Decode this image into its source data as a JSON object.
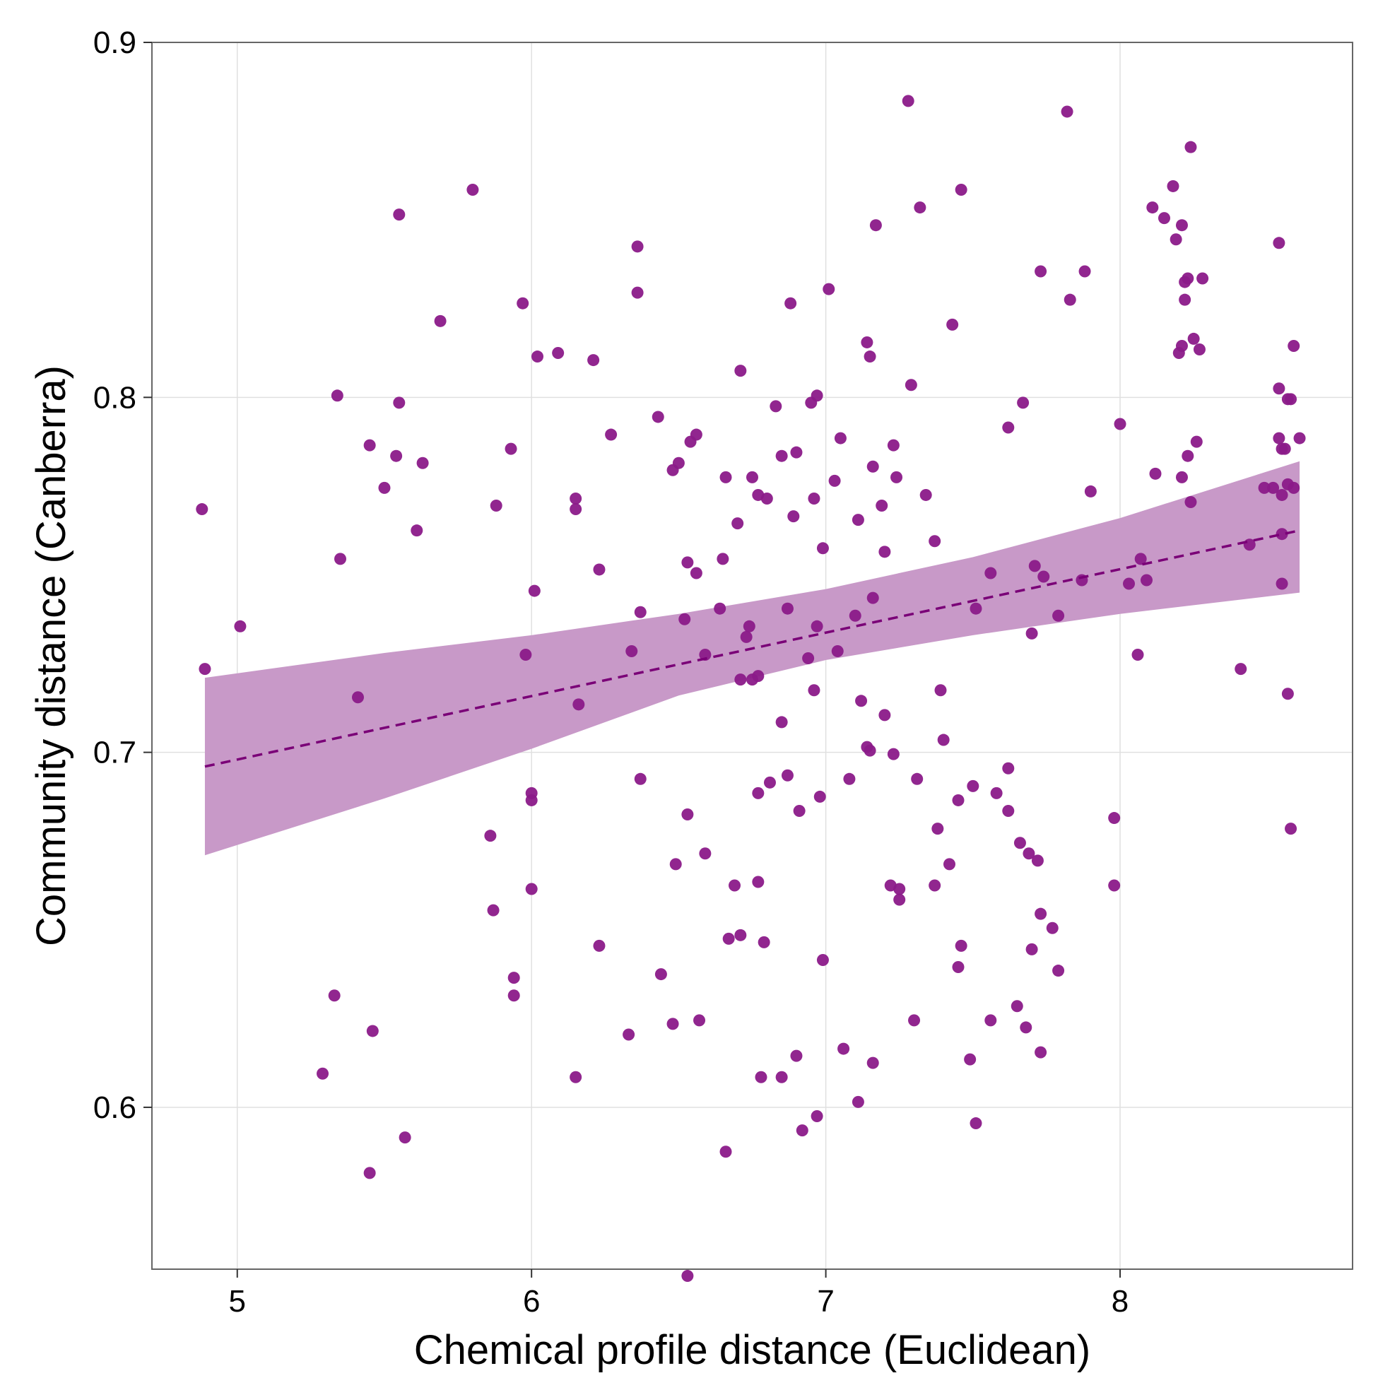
{
  "chart_data": {
    "type": "scatter",
    "title": "",
    "xlabel": "Chemical profile distance (Euclidean)",
    "ylabel": "Community distance (Canberra)",
    "xlim": [
      4.71,
      8.79
    ],
    "ylim": [
      0.5544,
      0.9
    ],
    "x_ticks": [
      5,
      6,
      7,
      8
    ],
    "x_tick_labels": [
      "5",
      "6",
      "7",
      "8"
    ],
    "y_ticks": [
      0.6,
      0.7,
      0.8,
      0.9
    ],
    "y_tick_labels": [
      "0.6",
      "0.7",
      "0.8",
      "0.9"
    ],
    "grid": true,
    "legend": "none",
    "colors": {
      "points": "#8b1a89",
      "band": "#c899c8",
      "trend": "#7a0077",
      "grid": "#e0e0e0",
      "frame": "#666666"
    },
    "trend_line": {
      "x": [
        4.89,
        8.61
      ],
      "y": [
        0.696,
        0.7625
      ],
      "style": "dashed"
    },
    "confidence_band": {
      "x": [
        4.89,
        5.5,
        6.0,
        6.5,
        7.0,
        7.5,
        8.0,
        8.61
      ],
      "lower": [
        0.671,
        0.687,
        0.701,
        0.716,
        0.726,
        0.733,
        0.739,
        0.745
      ],
      "upper": [
        0.721,
        0.728,
        0.733,
        0.739,
        0.746,
        0.755,
        0.766,
        0.782
      ]
    },
    "points": [
      [
        4.88,
        0.7685
      ],
      [
        4.89,
        0.7235
      ],
      [
        5.01,
        0.7355
      ],
      [
        5.29,
        0.6095
      ],
      [
        5.33,
        0.6315
      ],
      [
        5.34,
        0.8005
      ],
      [
        5.35,
        0.7545
      ],
      [
        5.41,
        0.7155
      ],
      [
        5.45,
        0.7865
      ],
      [
        5.45,
        0.5815
      ],
      [
        5.46,
        0.6215
      ],
      [
        5.54,
        0.7835
      ],
      [
        5.55,
        0.8515
      ],
      [
        5.55,
        0.7985
      ],
      [
        5.5,
        0.7745
      ],
      [
        5.57,
        0.5915
      ],
      [
        5.61,
        0.7625
      ],
      [
        5.63,
        0.7815
      ],
      [
        5.69,
        0.8215
      ],
      [
        5.8,
        0.8585
      ],
      [
        5.86,
        0.6765
      ],
      [
        5.87,
        0.6555
      ],
      [
        5.88,
        0.7695
      ],
      [
        5.93,
        0.7855
      ],
      [
        5.94,
        0.6365
      ],
      [
        5.94,
        0.6315
      ],
      [
        5.97,
        0.8265
      ],
      [
        5.98,
        0.7275
      ],
      [
        6.0,
        0.6885
      ],
      [
        6.0,
        0.6865
      ],
      [
        6.0,
        0.6615
      ],
      [
        6.01,
        0.7455
      ],
      [
        6.02,
        0.8115
      ],
      [
        6.09,
        0.8125
      ],
      [
        6.15,
        0.7715
      ],
      [
        6.15,
        0.7685
      ],
      [
        6.15,
        0.6085
      ],
      [
        6.16,
        0.7135
      ],
      [
        6.21,
        0.8105
      ],
      [
        6.23,
        0.7515
      ],
      [
        6.23,
        0.6455
      ],
      [
        6.27,
        0.7895
      ],
      [
        6.33,
        0.6205
      ],
      [
        6.34,
        0.7285
      ],
      [
        6.36,
        0.8425
      ],
      [
        6.36,
        0.8295
      ],
      [
        6.37,
        0.7395
      ],
      [
        6.37,
        0.6925
      ],
      [
        6.43,
        0.7945
      ],
      [
        6.44,
        0.6375
      ],
      [
        6.48,
        0.7795
      ],
      [
        6.48,
        0.6235
      ],
      [
        6.49,
        0.6685
      ],
      [
        6.5,
        0.7815
      ],
      [
        6.52,
        0.7375
      ],
      [
        6.53,
        0.6825
      ],
      [
        6.53,
        0.7535
      ],
      [
        6.53,
        0.5525
      ],
      [
        6.54,
        0.7875
      ],
      [
        6.56,
        0.7895
      ],
      [
        6.56,
        0.7505
      ],
      [
        6.57,
        0.6245
      ],
      [
        6.59,
        0.6715
      ],
      [
        6.59,
        0.7275
      ],
      [
        6.64,
        0.7405
      ],
      [
        6.65,
        0.7545
      ],
      [
        6.66,
        0.7775
      ],
      [
        6.66,
        0.5875
      ],
      [
        6.67,
        0.6475
      ],
      [
        6.69,
        0.6625
      ],
      [
        6.7,
        0.7645
      ],
      [
        6.71,
        0.8075
      ],
      [
        6.71,
        0.6485
      ],
      [
        6.71,
        0.7205
      ],
      [
        6.73,
        0.7325
      ],
      [
        6.74,
        0.7355
      ],
      [
        6.75,
        0.7775
      ],
      [
        6.75,
        0.7205
      ],
      [
        6.77,
        0.7215
      ],
      [
        6.77,
        0.7725
      ],
      [
        6.77,
        0.6885
      ],
      [
        6.77,
        0.6635
      ],
      [
        6.78,
        0.6085
      ],
      [
        6.79,
        0.6465
      ],
      [
        6.8,
        0.7715
      ],
      [
        6.81,
        0.6915
      ],
      [
        6.83,
        0.7975
      ],
      [
        6.85,
        0.7085
      ],
      [
        6.85,
        0.7835
      ],
      [
        6.85,
        0.6085
      ],
      [
        6.87,
        0.6935
      ],
      [
        6.87,
        0.7405
      ],
      [
        6.88,
        0.8265
      ],
      [
        6.89,
        0.7665
      ],
      [
        6.9,
        0.7845
      ],
      [
        6.9,
        0.6145
      ],
      [
        6.91,
        0.6835
      ],
      [
        6.92,
        0.5935
      ],
      [
        6.94,
        0.7265
      ],
      [
        6.95,
        0.7985
      ],
      [
        6.96,
        0.7175
      ],
      [
        6.96,
        0.7715
      ],
      [
        6.97,
        0.8005
      ],
      [
        6.97,
        0.7355
      ],
      [
        6.97,
        0.5975
      ],
      [
        6.98,
        0.6875
      ],
      [
        6.99,
        0.7575
      ],
      [
        6.99,
        0.6415
      ],
      [
        7.01,
        0.8305
      ],
      [
        7.03,
        0.7765
      ],
      [
        7.04,
        0.7285
      ],
      [
        7.05,
        0.7885
      ],
      [
        7.06,
        0.6165
      ],
      [
        7.08,
        0.6925
      ],
      [
        7.1,
        0.7385
      ],
      [
        7.11,
        0.7655
      ],
      [
        7.11,
        0.6015
      ],
      [
        7.12,
        0.7145
      ],
      [
        7.14,
        0.8155
      ],
      [
        7.14,
        0.7015
      ],
      [
        7.15,
        0.7005
      ],
      [
        7.15,
        0.8115
      ],
      [
        7.16,
        0.7805
      ],
      [
        7.16,
        0.7435
      ],
      [
        7.16,
        0.6125
      ],
      [
        7.17,
        0.8485
      ],
      [
        7.19,
        0.7695
      ],
      [
        7.2,
        0.7565
      ],
      [
        7.2,
        0.7105
      ],
      [
        7.22,
        0.6625
      ],
      [
        7.23,
        0.7865
      ],
      [
        7.23,
        0.6995
      ],
      [
        7.24,
        0.7775
      ],
      [
        7.25,
        0.6615
      ],
      [
        7.25,
        0.6585
      ],
      [
        7.28,
        0.8835
      ],
      [
        7.29,
        0.8035
      ],
      [
        7.3,
        0.6245
      ],
      [
        7.31,
        0.6925
      ],
      [
        7.32,
        0.8535
      ],
      [
        7.34,
        0.7725
      ],
      [
        7.37,
        0.7595
      ],
      [
        7.37,
        0.6625
      ],
      [
        7.38,
        0.6785
      ],
      [
        7.39,
        0.7175
      ],
      [
        7.4,
        0.7035
      ],
      [
        7.42,
        0.6685
      ],
      [
        7.43,
        0.8205
      ],
      [
        7.45,
        0.6395
      ],
      [
        7.45,
        0.6865
      ],
      [
        7.46,
        0.8585
      ],
      [
        7.46,
        0.6455
      ],
      [
        7.49,
        0.6135
      ],
      [
        7.5,
        0.6905
      ],
      [
        7.51,
        0.7405
      ],
      [
        7.51,
        0.5955
      ],
      [
        7.56,
        0.7505
      ],
      [
        7.56,
        0.6245
      ],
      [
        7.58,
        0.6885
      ],
      [
        7.62,
        0.7915
      ],
      [
        7.62,
        0.6835
      ],
      [
        7.62,
        0.6955
      ],
      [
        7.65,
        0.6285
      ],
      [
        7.66,
        0.6745
      ],
      [
        7.67,
        0.7985
      ],
      [
        7.68,
        0.6225
      ],
      [
        7.69,
        0.6715
      ],
      [
        7.7,
        0.6445
      ],
      [
        7.7,
        0.7335
      ],
      [
        7.71,
        0.7525
      ],
      [
        7.72,
        0.6695
      ],
      [
        7.73,
        0.6155
      ],
      [
        7.73,
        0.8355
      ],
      [
        7.73,
        0.6545
      ],
      [
        7.74,
        0.7495
      ],
      [
        7.77,
        0.6505
      ],
      [
        7.79,
        0.7385
      ],
      [
        7.79,
        0.6385
      ],
      [
        7.82,
        0.8805
      ],
      [
        7.83,
        0.8275
      ],
      [
        7.87,
        0.7485
      ],
      [
        7.88,
        0.8355
      ],
      [
        7.9,
        0.7735
      ],
      [
        7.98,
        0.6815
      ],
      [
        7.98,
        0.6625
      ],
      [
        8.0,
        0.7925
      ],
      [
        8.03,
        0.7475
      ],
      [
        8.06,
        0.7275
      ],
      [
        8.07,
        0.7545
      ],
      [
        8.09,
        0.7485
      ],
      [
        8.11,
        0.8535
      ],
      [
        8.12,
        0.7785
      ],
      [
        8.15,
        0.8505
      ],
      [
        8.18,
        0.8595
      ],
      [
        8.19,
        0.8445
      ],
      [
        8.2,
        0.8125
      ],
      [
        8.21,
        0.8485
      ],
      [
        8.21,
        0.8145
      ],
      [
        8.21,
        0.7775
      ],
      [
        8.22,
        0.8275
      ],
      [
        8.22,
        0.8325
      ],
      [
        8.23,
        0.8335
      ],
      [
        8.23,
        0.7835
      ],
      [
        8.24,
        0.8705
      ],
      [
        8.24,
        0.7705
      ],
      [
        8.25,
        0.8165
      ],
      [
        8.26,
        0.7875
      ],
      [
        8.27,
        0.8135
      ],
      [
        8.28,
        0.8335
      ],
      [
        8.41,
        0.7235
      ],
      [
        8.44,
        0.7585
      ],
      [
        8.49,
        0.7745
      ],
      [
        8.52,
        0.7745
      ],
      [
        8.54,
        0.8435
      ],
      [
        8.54,
        0.7885
      ],
      [
        8.54,
        0.8025
      ],
      [
        8.55,
        0.7855
      ],
      [
        8.55,
        0.7725
      ],
      [
        8.55,
        0.7615
      ],
      [
        8.55,
        0.7475
      ],
      [
        8.56,
        0.7855
      ],
      [
        8.57,
        0.7755
      ],
      [
        8.57,
        0.7995
      ],
      [
        8.58,
        0.7995
      ],
      [
        8.59,
        0.8145
      ],
      [
        8.59,
        0.7745
      ],
      [
        8.57,
        0.7165
      ],
      [
        8.58,
        0.6785
      ],
      [
        8.61,
        0.7885
      ]
    ]
  }
}
